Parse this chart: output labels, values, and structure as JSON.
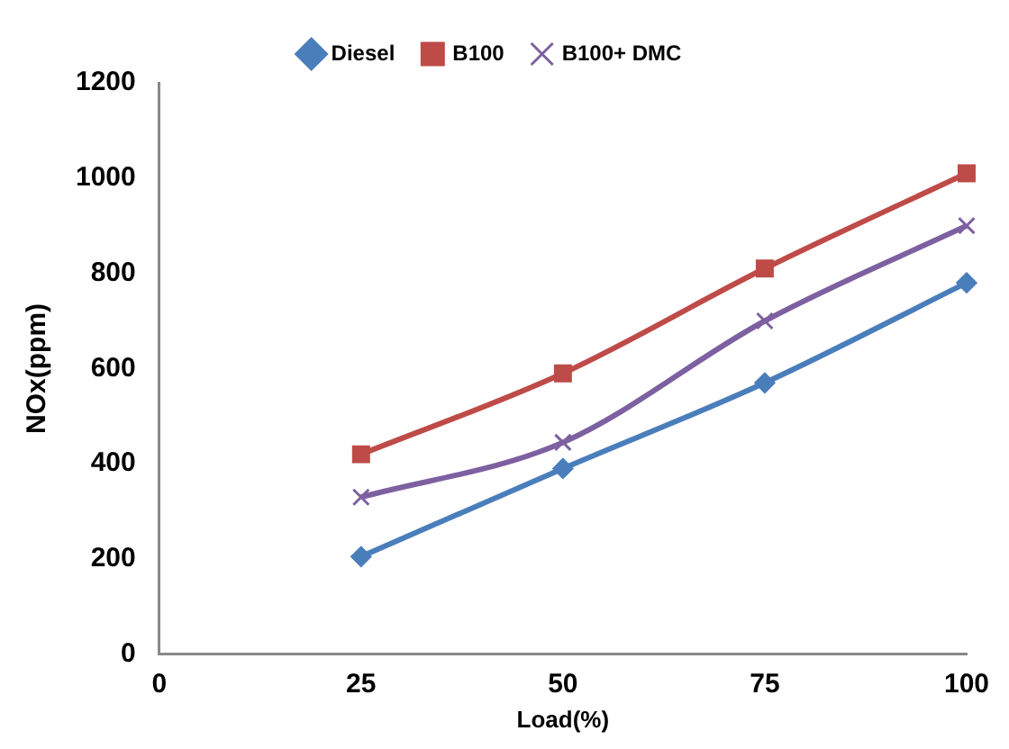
{
  "chart_data": {
    "type": "line",
    "xlabel": "Load(%)",
    "ylabel": "NOx(ppm)",
    "x": [
      25,
      50,
      75,
      100
    ],
    "series": [
      {
        "name": "Diesel",
        "color": "#4a7ebb",
        "values": [
          205,
          390,
          570,
          780
        ],
        "marker": "diamond"
      },
      {
        "name": "B100",
        "color": "#be4b48",
        "values": [
          420,
          590,
          810,
          1010
        ],
        "marker": "square"
      },
      {
        "name": "B100+ DMC",
        "color": "#7d60a0",
        "values": [
          330,
          445,
          700,
          900
        ],
        "marker": "cross"
      }
    ],
    "xlim": [
      0,
      100
    ],
    "xticks": [
      0,
      25,
      50,
      75,
      100
    ],
    "ylim": [
      0,
      1200
    ],
    "yticks": [
      0,
      200,
      400,
      600,
      800,
      1000,
      1200
    ],
    "grid": false,
    "legend": "top"
  }
}
